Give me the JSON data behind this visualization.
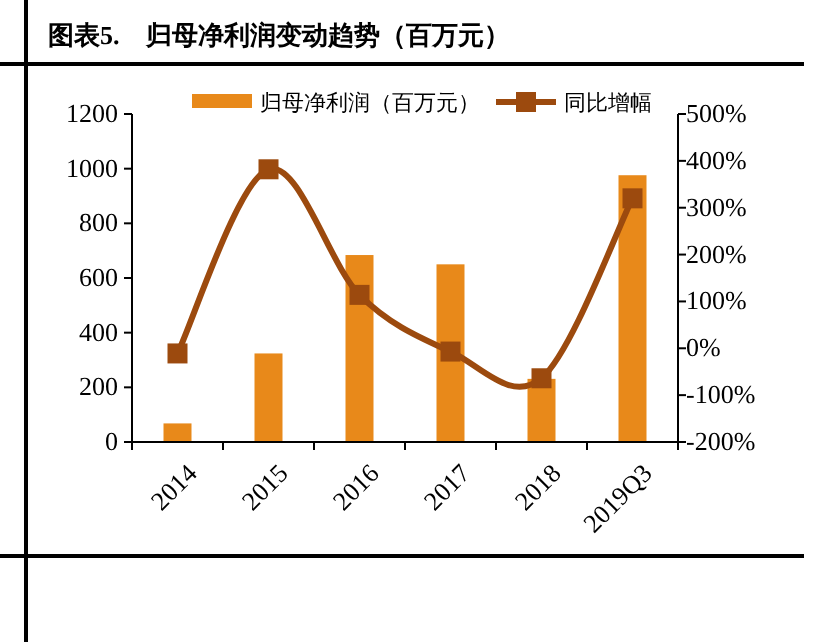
{
  "chart_data": {
    "type": "bar",
    "title": "图表5.　归母净利润变动趋势（百万元）",
    "categories": [
      "2014",
      "2015",
      "2016",
      "2017",
      "2018",
      "2019Q3"
    ],
    "series": [
      {
        "name": "归母净利润（百万元）",
        "color": "#e8891a",
        "values": [
          68,
          324,
          684,
          650,
          231,
          976
        ]
      },
      {
        "name": "同比增幅",
        "type": "line",
        "axis": "y2",
        "color": "#9c4a0e",
        "values": [
          -11,
          382,
          114,
          -7,
          -64,
          320
        ]
      }
    ],
    "ylim": [
      0,
      1200
    ],
    "yticks": [
      0,
      200,
      400,
      600,
      800,
      1000,
      1200
    ],
    "y2lim": [
      -200,
      500
    ],
    "y2ticks": [
      {
        "value": -200,
        "label": "-200%"
      },
      {
        "value": -100,
        "label": "-100%"
      },
      {
        "value": 0,
        "label": "0%"
      },
      {
        "value": 100,
        "label": "100%"
      },
      {
        "value": 200,
        "label": "200%"
      },
      {
        "value": 300,
        "label": "300%"
      },
      {
        "value": 400,
        "label": "400%"
      },
      {
        "value": 500,
        "label": "500%"
      }
    ],
    "legend": "top",
    "marker": "square",
    "grid": false
  }
}
